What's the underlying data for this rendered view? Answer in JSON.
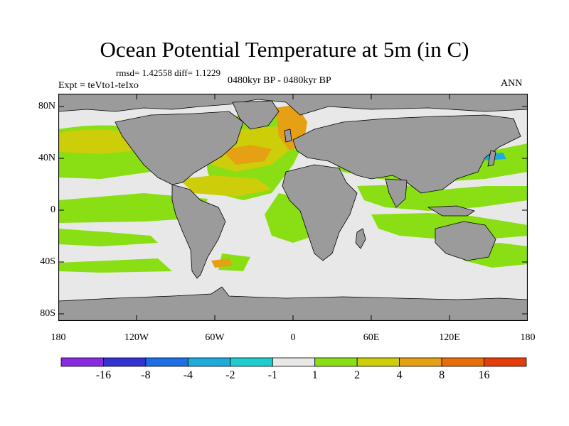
{
  "title": "Ocean Potential Temperature at 5m (in C)",
  "stats": "rmsd= 1.42558 diff= 1.1229",
  "experiment": "Expt = teVto1-teIxo",
  "period": "0480kyr BP - 0480kyr BP",
  "season": "ANN",
  "lat_labels": [
    "80N",
    "40N",
    "0",
    "40S",
    "80S"
  ],
  "lon_labels": [
    "180",
    "120W",
    "60W",
    "0",
    "60E",
    "120E",
    "180"
  ],
  "colorbar": {
    "colors": [
      "#8a2be2",
      "#3232d2",
      "#1e6ee6",
      "#1eaadc",
      "#1ecdcd",
      "#e8e8e8",
      "#8ade14",
      "#cdcd0a",
      "#e6a014",
      "#e66e0a",
      "#e63c0a"
    ],
    "labels": [
      "-16",
      "-8",
      "-4",
      "-2",
      "-1",
      "1",
      "2",
      "4",
      "8",
      "16"
    ]
  },
  "map_colors": {
    "land": "#9b9b9b",
    "ocean_neutral": "#e8e8e8",
    "warm_1_2": "#8ade14",
    "warm_2_4": "#cdcd0a",
    "warm_4_8": "#e6a014",
    "cool": "#1eaadc"
  }
}
